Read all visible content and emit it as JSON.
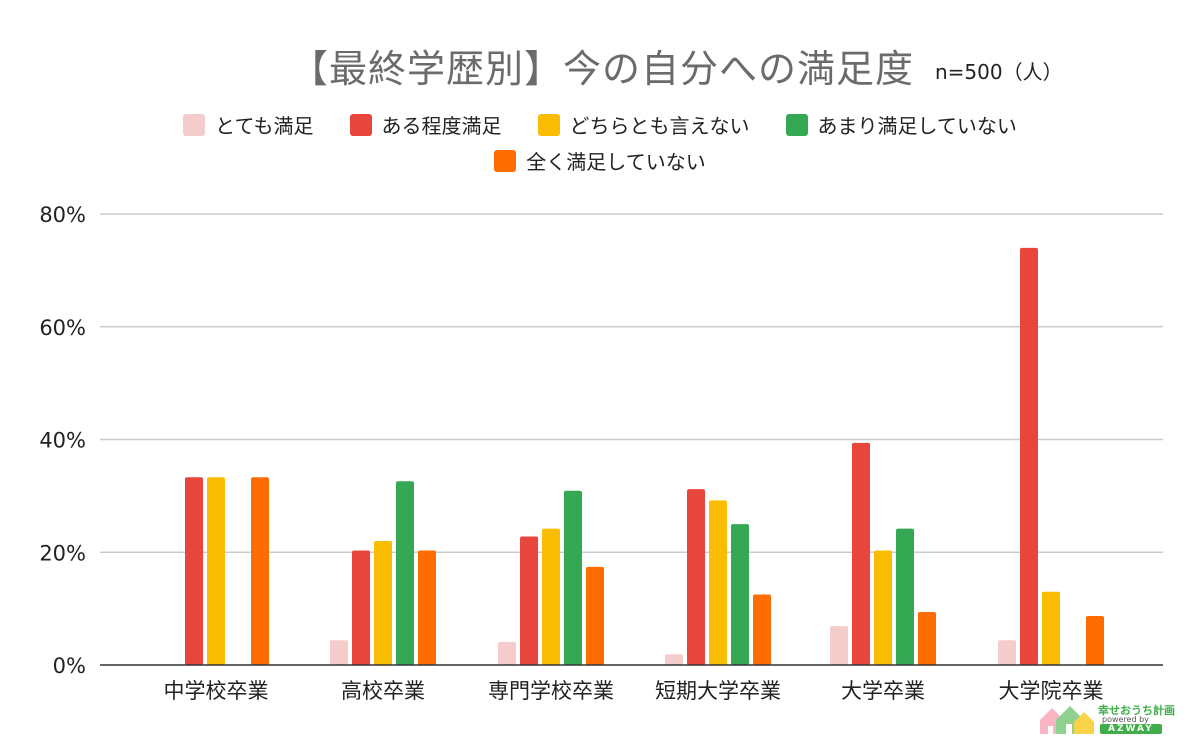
{
  "title": "【最終学歴別】今の自分への満足度",
  "sample_note": "n=500（人）",
  "chart_data": {
    "type": "bar",
    "title": "【最終学歴別】今の自分への満足度",
    "categories": [
      "中学校卒業",
      "高校卒業",
      "専門学校卒業",
      "短期大学卒業",
      "大学卒業",
      "大学院卒業"
    ],
    "series": [
      {
        "name": "とても満足",
        "color": "#f4cccc",
        "values": [
          0,
          4.4,
          4.1,
          1.9,
          6.9,
          4.4
        ]
      },
      {
        "name": "ある程度満足",
        "color": "#e8453c",
        "values": [
          33.3,
          20.3,
          22.8,
          31.2,
          39.4,
          74.0
        ]
      },
      {
        "name": "どちらとも言えない",
        "color": "#fbbc04",
        "values": [
          33.3,
          22.0,
          24.2,
          29.2,
          20.3,
          13.0
        ]
      },
      {
        "name": "あまり満足していない",
        "color": "#34a853",
        "values": [
          0,
          32.6,
          30.9,
          25.0,
          24.2,
          0
        ]
      },
      {
        "name": "全く満足していない",
        "color": "#ff6d01",
        "values": [
          33.3,
          20.3,
          17.4,
          12.5,
          9.4,
          8.7
        ]
      }
    ],
    "ylim": [
      0,
      80
    ],
    "yticks": [
      "0%",
      "20%",
      "40%",
      "60%",
      "80%"
    ],
    "ytick_values": [
      0,
      20,
      40,
      60,
      80
    ],
    "grid": true,
    "legend_position": "top"
  },
  "logo": {
    "name": "幸せおうち計画",
    "sub": "powered by",
    "brand": "AZWAY"
  }
}
